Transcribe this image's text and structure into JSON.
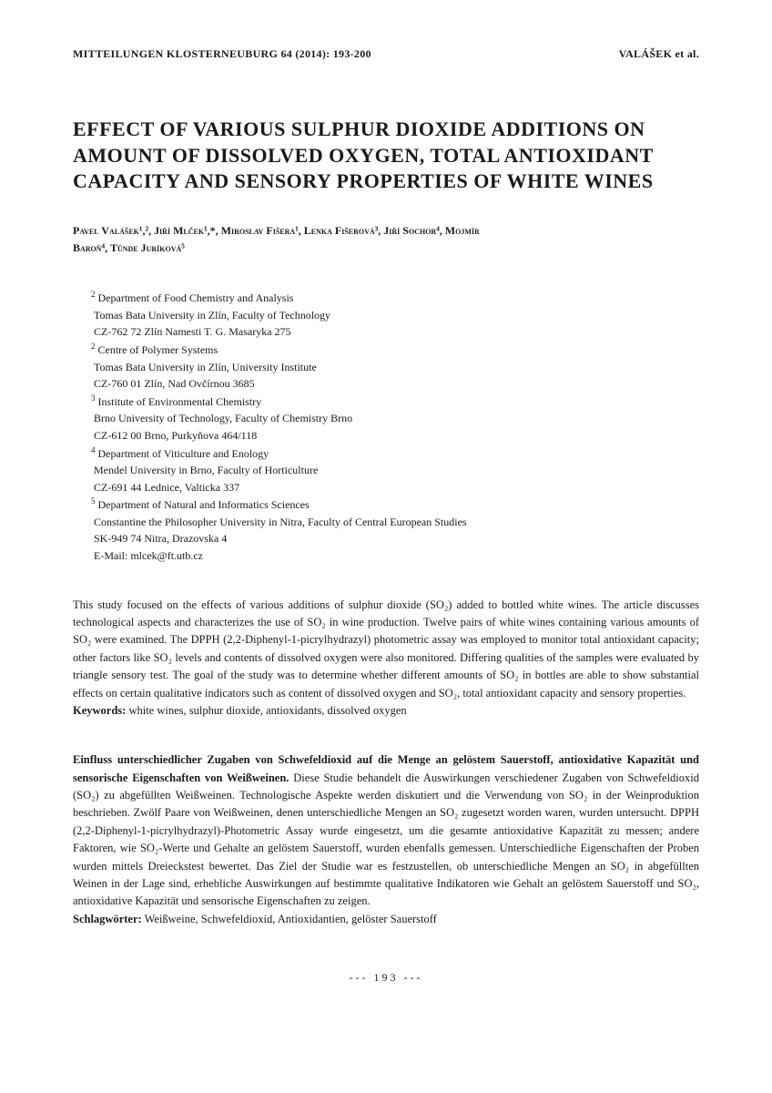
{
  "header": {
    "journal": "MITTEILUNGEN KLOSTERNEUBURG 64 (2014): 193-200",
    "author_short": "VALÁŠEK et al."
  },
  "title": "EFFECT OF VARIOUS SULPHUR DIOXIDE ADDITIONS ON AMOUNT OF DISSOLVED OXYGEN, TOTAL ANTIOXIDANT CAPACITY AND SENSORY PROPERTIES OF WHITE WINES",
  "authors_line1": "Pavel Valášek¹,², Jiří Mlček¹,*, Miroslav Fišera¹, Lenka Fišerová³, Jiří Sochor⁴, Mojmír",
  "authors_line2": "Baroň⁴, Tünde Juríková⁵",
  "affiliations": [
    {
      "sup": "2",
      "lines": [
        "Department of Food Chemistry and Analysis",
        "Tomas Bata University in Zlín, Faculty of Technology",
        "CZ-762 72 Zlín Namesti T. G. Masaryka 275"
      ]
    },
    {
      "sup": "2",
      "lines": [
        "Centre of Polymer Systems",
        "Tomas Bata University in Zlín, University Institute",
        "CZ-760 01 Zlín, Nad Ovčírnou 3685"
      ]
    },
    {
      "sup": "3",
      "lines": [
        "Institute of Environmental Chemistry",
        "Brno University of Technology, Faculty of Chemistry Brno",
        "CZ-612 00 Brno, Purkyňova 464/118"
      ]
    },
    {
      "sup": "4",
      "lines": [
        "Department of Viticulture and Enology",
        "Mendel University in Brno, Faculty of Horticulture",
        "CZ-691 44 Lednice, Valticka 337"
      ]
    },
    {
      "sup": "5",
      "lines": [
        "Department of Natural and Informatics Sciences",
        "Constantine the Philosopher University in Nitra, Faculty of Central European Studies",
        "SK-949 74 Nitra, Drazovska 4"
      ]
    }
  ],
  "email": "E-Mail: mlcek@ft.utb.cz",
  "abstract_en": {
    "text": "This study focused on the effects of various additions of sulphur dioxide (SO₂) added to bottled white wines. The article discusses technological aspects and characterizes the use of SO₂ in wine production. Twelve pairs of white wines containing various amounts of SO₂ were examined. The DPPH (2,2-Diphenyl-1-picrylhydrazyl) photometric assay was employed to monitor total antioxidant capacity; other factors like SO₂ levels and contents of dissolved oxygen were also monitored. Differing qualities of the samples were evaluated by triangle sensory test. The goal of the study was to determine whether different amounts of SO₂ in bottles are able to show substantial effects on certain qualitative indicators such as content of dissolved oxygen and SO₂, total antioxidant capacity and sensory properties.",
    "keywords_label": "Keywords:",
    "keywords": "white wines, sulphur dioxide, antioxidants, dissolved oxygen"
  },
  "abstract_de": {
    "title": "Einfluss unterschiedlicher Zugaben von Schwefeldioxid auf die Menge an gelöstem Sauerstoff, antioxidative Kapazität und sensorische Eigenschaften von Weißweinen.",
    "text": "Diese Studie behandelt die Auswirkungen verschiedener Zugaben von Schwefeldioxid (SO₂) zu abgefüllten Weißweinen. Technologische Aspekte werden diskutiert und die Verwendung von SO₂ in der Weinproduktion beschrieben. Zwölf Paare von Weißweinen, denen unterschiedliche Mengen an SO₂ zugesetzt worden waren, wurden untersucht. DPPH (2,2-Diphenyl-1-picrylhydrazyl)-Photometric Assay wurde eingesetzt, um die gesamte antioxidative Kapazität zu messen; andere Faktoren, wie SO₂-Werte und Gehalte an gelöstem Sauerstoff, wurden ebenfalls gemessen. Unterschiedliche Eigenschaften der Proben wurden mittels Dreieckstest bewertet. Das Ziel der Studie war es festzustellen, ob unterschiedliche Mengen an SO₂ in abgefüllten Weinen in der Lage sind, erhebliche Auswirkungen auf bestimmte qualitative Indikatoren wie Gehalt an gelöstem Sauerstoff und SO₂, antioxidative Kapazität und sensorische Eigenschaften zu zeigen.",
    "keywords_label": "Schlagwörter:",
    "keywords": "Weißweine, Schwefeldioxid, Antioxidantien, gelöster Sauerstoff"
  },
  "page_number": "--- 193 ---"
}
